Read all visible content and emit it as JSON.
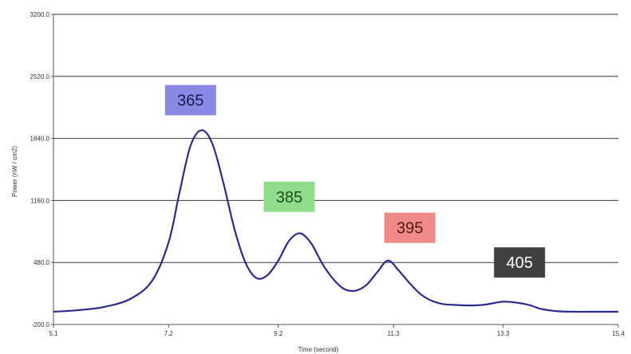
{
  "chart_data": {
    "type": "line",
    "xlabel": "Time (second)",
    "ylabel": "Power (nW / cm2)",
    "x_ticks": [
      "5.1",
      "7.2",
      "9.2",
      "11.3",
      "13.3",
      "15.4"
    ],
    "y_ticks": [
      "3200.0",
      "2520.0",
      "1840.0",
      "1160.0",
      "480.0",
      "-200.0"
    ],
    "xlim": [
      5.1,
      15.4
    ],
    "ylim": [
      -200,
      3200
    ],
    "grid": "horizontal",
    "line_color": "#2b2b8f",
    "series": [
      {
        "x": [
          5.1,
          5.5,
          6.0,
          6.5,
          6.9,
          7.2,
          7.4,
          7.6,
          7.8,
          8.0,
          8.2,
          8.4,
          8.6,
          8.8,
          9.0,
          9.2,
          9.4,
          9.6,
          9.8,
          10.0,
          10.2,
          10.4,
          10.6,
          10.8,
          11.0,
          11.2,
          11.4,
          11.6,
          11.8,
          12.0,
          12.2,
          12.4,
          12.6,
          12.8,
          13.0,
          13.3,
          13.6,
          13.8,
          14.0,
          14.3,
          14.6,
          15.0,
          15.4
        ],
        "y": [
          -60,
          -45,
          -10,
          80,
          280,
          700,
          1250,
          1760,
          1930,
          1780,
          1350,
          850,
          480,
          310,
          340,
          500,
          720,
          800,
          690,
          470,
          300,
          190,
          170,
          230,
          370,
          500,
          390,
          250,
          130,
          60,
          25,
          15,
          10,
          10,
          20,
          50,
          35,
          10,
          -30,
          -55,
          -60,
          -60,
          -60
        ]
      }
    ],
    "annotations": [
      {
        "text": "365",
        "x": 7.6,
        "y": 2260,
        "bg": "#8a8ae6",
        "fg": "#1a1a4d"
      },
      {
        "text": "385",
        "x": 9.4,
        "y": 1200,
        "bg": "#8fdc8f",
        "fg": "#1f4d1f"
      },
      {
        "text": "395",
        "x": 11.6,
        "y": 860,
        "bg": "#f08a8a",
        "fg": "#4d1a1a"
      },
      {
        "text": "405",
        "x": 13.6,
        "y": 480,
        "bg": "#404040",
        "fg": "#ffffff"
      }
    ]
  }
}
